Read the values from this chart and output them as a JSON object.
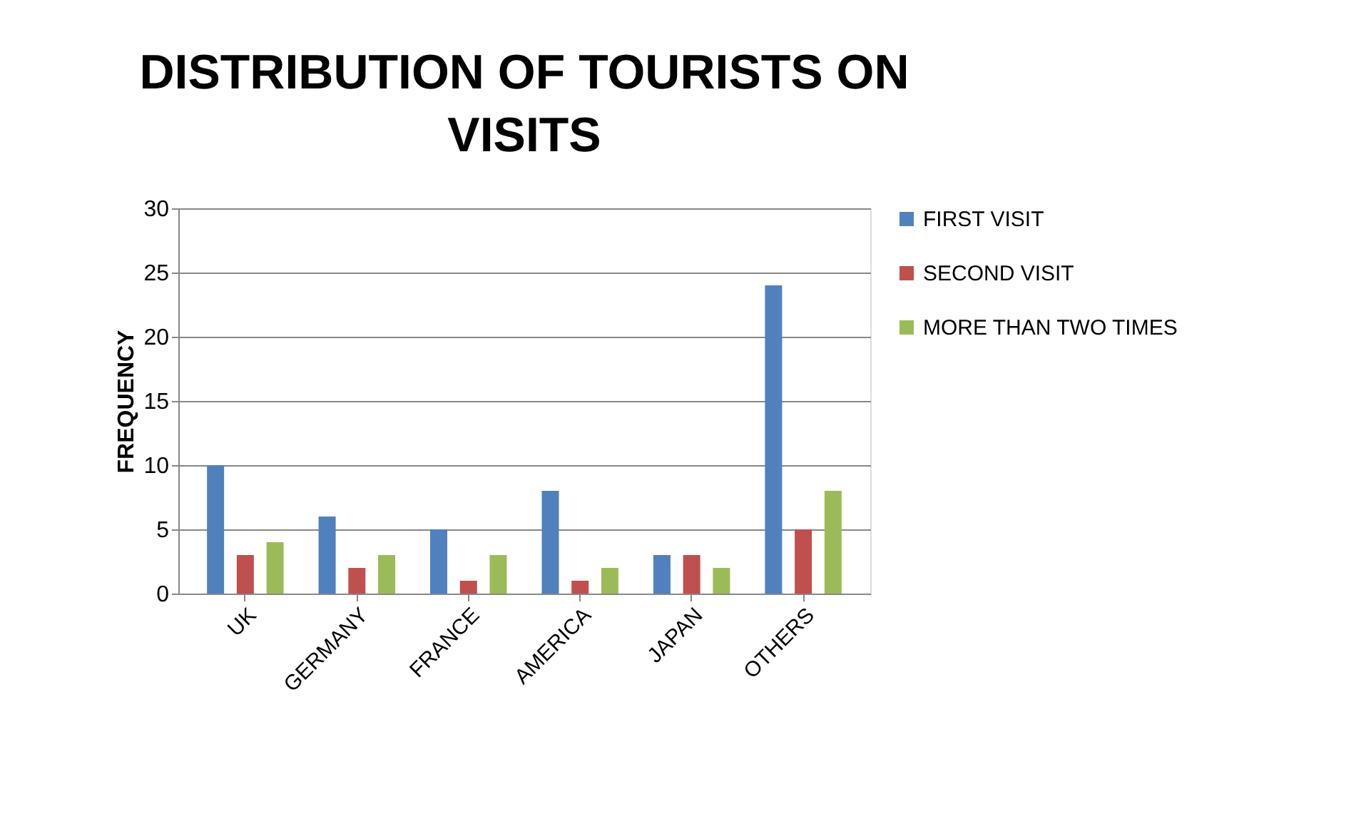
{
  "chart_data": {
    "type": "bar",
    "title": "DISTRIBUTION OF TOURISTS ON VISITS",
    "ylabel": "FREQUENCY",
    "categories": [
      "UK",
      "GERMANY",
      "FRANCE",
      "AMERICA",
      "JAPAN",
      "OTHERS"
    ],
    "series": [
      {
        "name": "FIRST VISIT",
        "color": "#4f81bd",
        "values": [
          10,
          6,
          5,
          8,
          3,
          24
        ]
      },
      {
        "name": "SECOND VISIT",
        "color": "#c0504d",
        "values": [
          3,
          2,
          1,
          1,
          3,
          5
        ]
      },
      {
        "name": "MORE THAN TWO TIMES",
        "color": "#9bbb59",
        "values": [
          4,
          3,
          3,
          2,
          2,
          8
        ]
      }
    ],
    "ylim": [
      0,
      30
    ],
    "yticks": [
      0,
      5,
      10,
      15,
      20,
      25,
      30
    ],
    "grid": "y",
    "legend": "right"
  }
}
